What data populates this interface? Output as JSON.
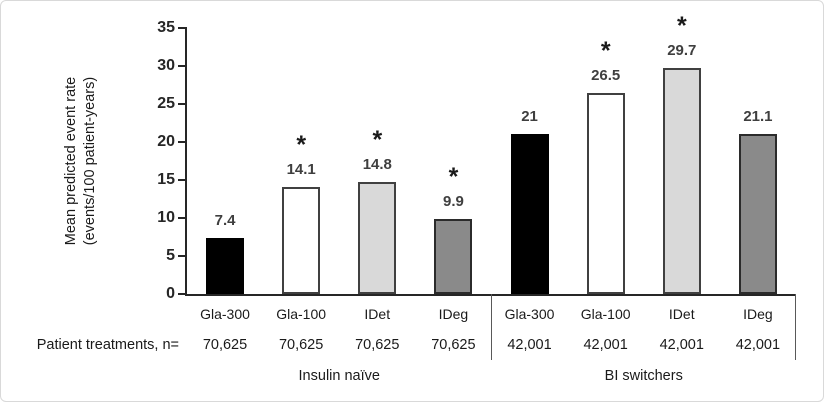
{
  "figure": {
    "y_axis_title_line1": "Mean predicted event rate",
    "y_axis_title_line2": "(events/100 patient-years)",
    "row_label": "Patient treatments, n=",
    "significance_marker": "*"
  },
  "chart_data": {
    "type": "bar",
    "title": "",
    "xlabel": "",
    "ylabel": "Mean predicted event rate (events/100 patient-years)",
    "ylim": [
      0,
      35
    ],
    "y_ticks": [
      0,
      5,
      10,
      15,
      20,
      25,
      30,
      35
    ],
    "grid": false,
    "legend": false,
    "groups": [
      {
        "label": "Insulin naïve",
        "categories": [
          "Gla-300",
          "Gla-100",
          "IDet",
          "IDeg"
        ],
        "values": [
          7.4,
          14.1,
          14.8,
          9.9
        ],
        "n_values": [
          "70,625",
          "70,625",
          "70,625",
          "70,625"
        ],
        "significant": [
          false,
          true,
          true,
          true
        ]
      },
      {
        "label": "BI switchers",
        "categories": [
          "Gla-300",
          "Gla-100",
          "IDet",
          "IDeg"
        ],
        "values": [
          21,
          26.5,
          29.7,
          21.1
        ],
        "n_values": [
          "42,001",
          "42,001",
          "42,001",
          "42,001"
        ],
        "significant": [
          false,
          true,
          true,
          false
        ]
      }
    ],
    "bar_styles": [
      {
        "treatment": "Gla-300",
        "fill": "#000000",
        "border": "#000000"
      },
      {
        "treatment": "Gla-100",
        "fill": "#ffffff",
        "border": "#404040"
      },
      {
        "treatment": "IDet",
        "fill": "#d9d9d9",
        "border": "#404040"
      },
      {
        "treatment": "IDeg",
        "fill": "#8a8a8a",
        "border": "#2b2b2b"
      }
    ]
  }
}
